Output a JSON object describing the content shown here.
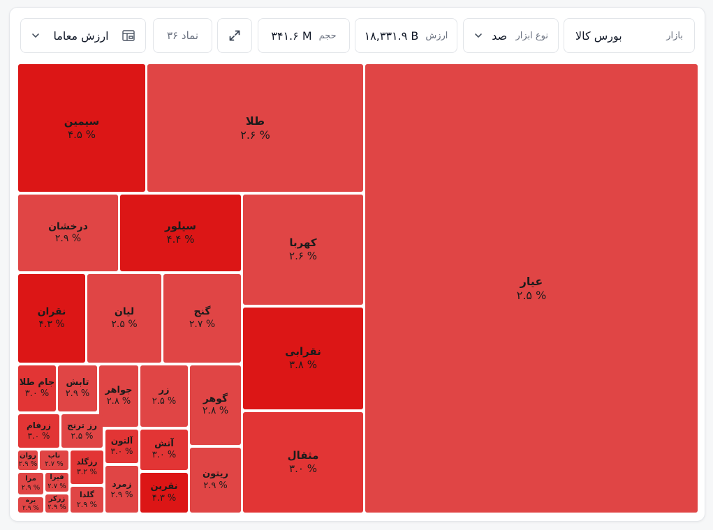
{
  "toolbar": {
    "market_label": "بازار",
    "market_value": "بورس کالا",
    "type_label": "نوع ابزار",
    "type_value": "صد",
    "value_label": "ارزش",
    "value_value": "۱۸,۳۳۱.۹ B",
    "volume_label": "حجم",
    "volume_value": "۳۴۱.۶ M",
    "count_text": "۳۶ نماد",
    "metric_value": "ارزش معاما"
  },
  "colors": {
    "strong": "#dc1616",
    "mid": "#e23535",
    "light": "#e04545"
  },
  "chart_data": {
    "type": "treemap",
    "metric": "ارزش معاما",
    "items": [
      {
        "name": "عیار",
        "change": "۲.۵ %",
        "shade": "light"
      },
      {
        "name": "طلا",
        "change": "۲.۶ %",
        "shade": "light"
      },
      {
        "name": "سیمین",
        "change": "۴.۵ %",
        "shade": "strong"
      },
      {
        "name": "کهربا",
        "change": "۲.۶ %",
        "shade": "light"
      },
      {
        "name": "سیلور",
        "change": "۴.۴ %",
        "shade": "strong"
      },
      {
        "name": "درخشان",
        "change": "۲.۹ %",
        "shade": "light"
      },
      {
        "name": "نقرابی",
        "change": "۳.۸ %",
        "shade": "strong"
      },
      {
        "name": "مثقال",
        "change": "۳.۰ %",
        "shade": "mid"
      },
      {
        "name": "گنج",
        "change": "۲.۷ %",
        "shade": "light"
      },
      {
        "name": "لیان",
        "change": "۲.۵ %",
        "shade": "light"
      },
      {
        "name": "نقران",
        "change": "۴.۳ %",
        "shade": "strong"
      },
      {
        "name": "گوهر",
        "change": "۲.۸ %",
        "shade": "light"
      },
      {
        "name": "ریتون",
        "change": "۲.۹ %",
        "shade": "light"
      },
      {
        "name": "زر",
        "change": "۲.۵ %",
        "shade": "light"
      },
      {
        "name": "آتش",
        "change": "۳.۰ %",
        "shade": "mid"
      },
      {
        "name": "نقرین",
        "change": "۴.۳ %",
        "shade": "strong"
      },
      {
        "name": "جواهر",
        "change": "۲.۸ %",
        "shade": "light"
      },
      {
        "name": "آلتون",
        "change": "۳.۰ %",
        "shade": "mid"
      },
      {
        "name": "زمرد",
        "change": "۲.۹ %",
        "shade": "light"
      },
      {
        "name": "تابش",
        "change": "۲.۹ %",
        "shade": "light"
      },
      {
        "name": "جام طلا",
        "change": "۳.۰ %",
        "shade": "mid"
      },
      {
        "name": "رز ترنج",
        "change": "۲.۵ %",
        "shade": "light"
      },
      {
        "name": "زرفام",
        "change": "۳.۰ %",
        "shade": "mid"
      },
      {
        "name": "رزگلد",
        "change": "۳.۲ %",
        "shade": "mid"
      },
      {
        "name": "گلدا",
        "change": "۲.۹ %",
        "shade": "light"
      },
      {
        "name": "ناب",
        "change": "۲.۷ %",
        "shade": "light"
      },
      {
        "name": "روان",
        "change": "۲.۹ %",
        "shade": "light"
      },
      {
        "name": "فیرا",
        "change": "۲.۷ %",
        "shade": "light"
      },
      {
        "name": "زرکر",
        "change": "۲.۹ %",
        "shade": "light"
      },
      {
        "name": "مرا",
        "change": "۲.۹ %",
        "shade": "light"
      },
      {
        "name": "یره",
        "change": "۲.۹ %",
        "shade": "light"
      }
    ]
  }
}
